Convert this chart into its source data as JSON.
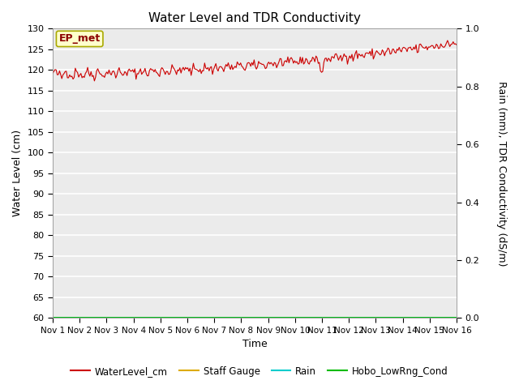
{
  "title": "Water Level and TDR Conductivity",
  "ylabel_left": "Water Level (cm)",
  "ylabel_right": "Rain (mm), TDR Conductivity (dS/m)",
  "xlabel": "Time",
  "ylim_left": [
    60,
    130
  ],
  "ylim_right": [
    0.0,
    1.0
  ],
  "yticks_left": [
    60,
    65,
    70,
    75,
    80,
    85,
    90,
    95,
    100,
    105,
    110,
    115,
    120,
    125,
    130
  ],
  "yticks_right": [
    0.0,
    0.2,
    0.4,
    0.6,
    0.8,
    1.0
  ],
  "xtick_labels": [
    "Nov 1",
    "Nov 2",
    "Nov 3",
    "Nov 4",
    "Nov 5",
    "Nov 6",
    "Nov 7",
    "Nov 8",
    "Nov 9",
    "Nov 10",
    "Nov 11",
    "Nov 12",
    "Nov 13",
    "Nov 14",
    "Nov 15",
    "Nov 16"
  ],
  "annotation_text": "EP_met",
  "annotation_color": "#8B0000",
  "annotation_box_facecolor": "#FFFFCC",
  "annotation_box_edgecolor": "#AAAA00",
  "legend_entries": [
    "WaterLevel_cm",
    "Staff Gauge",
    "Rain",
    "Hobo_LowRng_Cond"
  ],
  "legend_colors": [
    "#CC0000",
    "#DDAA00",
    "#00CCCC",
    "#00BB00"
  ],
  "water_level_color": "#CC0000",
  "staff_gauge_color": "#DDAA00",
  "rain_color": "#00CCCC",
  "hobo_color": "#00BB00",
  "plot_bg_color": "#EBEBEB",
  "fig_bg_color": "#FFFFFF",
  "grid_color": "#FFFFFF",
  "num_days": 15,
  "water_level_seed": 42
}
